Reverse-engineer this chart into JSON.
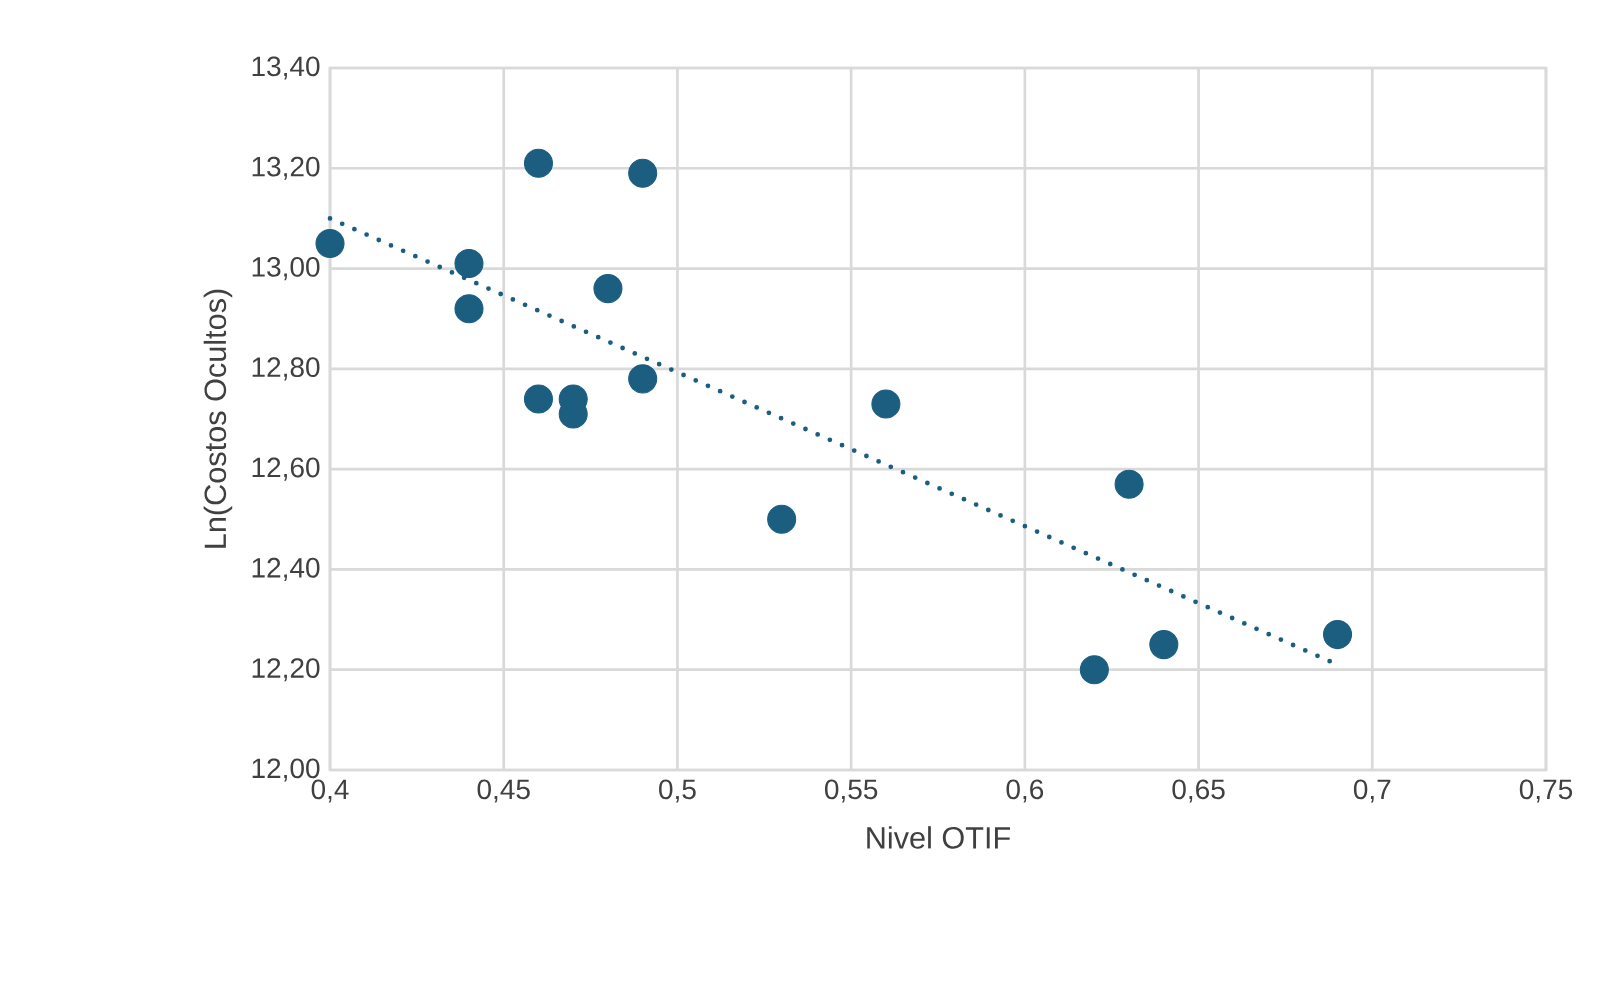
{
  "chart_data": {
    "type": "scatter",
    "xlabel": "Nivel OTIF",
    "ylabel": "Ln(Costos Ocultos)",
    "grid": true,
    "marker": "circle",
    "xlim": [
      0.4,
      0.75
    ],
    "xticks": [
      {
        "value": 0.4,
        "label": "0,4"
      },
      {
        "value": 0.45,
        "label": "0,45"
      },
      {
        "value": 0.5,
        "label": "0,5"
      },
      {
        "value": 0.55,
        "label": "0,55"
      },
      {
        "value": 0.6,
        "label": "0,6"
      },
      {
        "value": 0.65,
        "label": "0,65"
      },
      {
        "value": 0.7,
        "label": "0,7"
      },
      {
        "value": 0.75,
        "label": "0,75"
      }
    ],
    "ylim": [
      12.0,
      13.4
    ],
    "yticks": [
      {
        "value": 12.0,
        "label": "12,00"
      },
      {
        "value": 12.2,
        "label": "12,20"
      },
      {
        "value": 12.4,
        "label": "12,40"
      },
      {
        "value": 12.6,
        "label": "12,60"
      },
      {
        "value": 12.8,
        "label": "12,80"
      },
      {
        "value": 13.0,
        "label": "13,00"
      },
      {
        "value": 13.2,
        "label": "13,20"
      },
      {
        "value": 13.4,
        "label": "13,40"
      }
    ],
    "series": [
      {
        "color": "#1b5e80",
        "x": [
          0.4,
          0.46,
          0.49,
          0.44,
          0.44,
          0.48,
          0.46,
          0.47,
          0.47,
          0.49,
          0.56,
          0.53,
          0.63,
          0.62,
          0.64,
          0.69
        ],
        "values": [
          13.05,
          13.21,
          13.19,
          13.01,
          12.92,
          12.96,
          12.74,
          12.74,
          12.71,
          12.78,
          12.73,
          12.5,
          12.57,
          12.2,
          12.25,
          12.27
        ]
      },
      {
        "type": "line",
        "color": "#1b5e80",
        "marker": "none",
        "line_style": "dotted",
        "x": [
          0.4,
          0.69
        ],
        "values": [
          13.1,
          12.21
        ]
      }
    ]
  }
}
